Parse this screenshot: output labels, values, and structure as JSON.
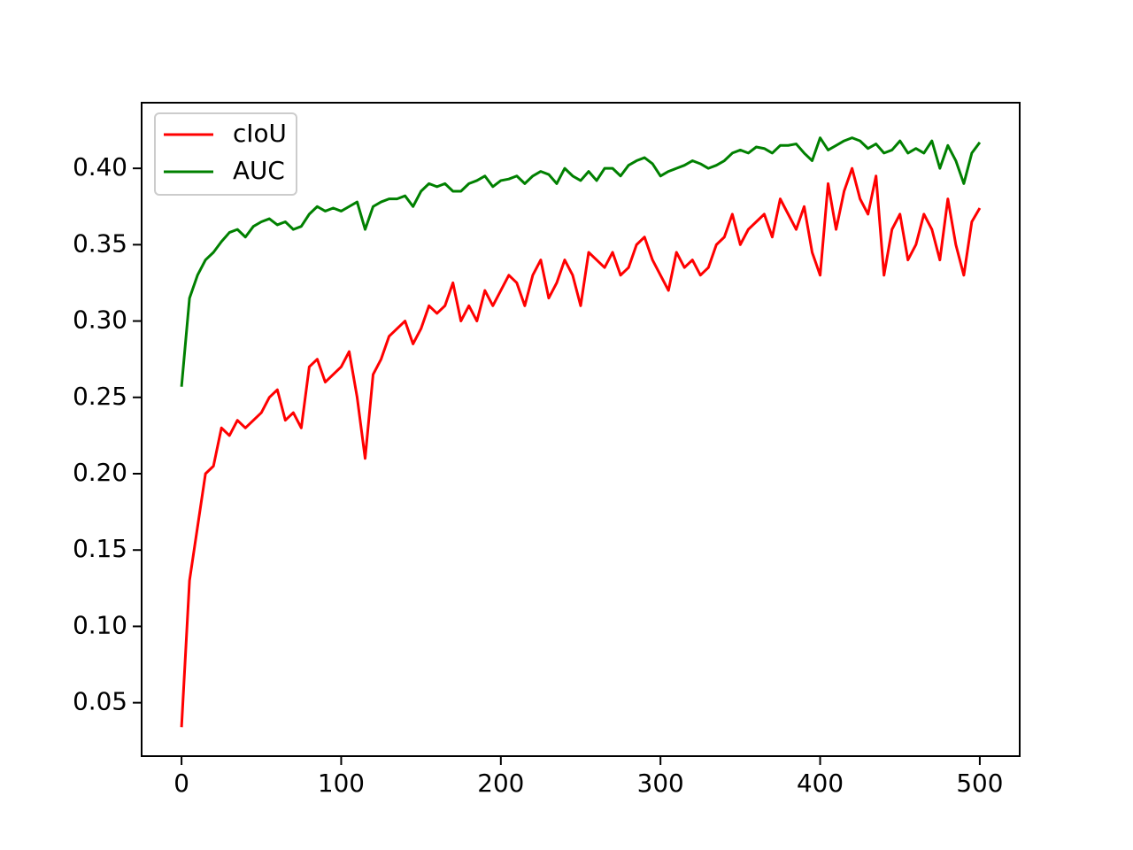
{
  "chart_data": {
    "type": "line",
    "x": [
      0,
      5,
      10,
      15,
      20,
      25,
      30,
      35,
      40,
      45,
      50,
      55,
      60,
      65,
      70,
      75,
      80,
      85,
      90,
      95,
      100,
      105,
      110,
      115,
      120,
      125,
      130,
      135,
      140,
      145,
      150,
      155,
      160,
      165,
      170,
      175,
      180,
      185,
      190,
      195,
      200,
      205,
      210,
      215,
      220,
      225,
      230,
      235,
      240,
      245,
      250,
      255,
      260,
      265,
      270,
      275,
      280,
      285,
      290,
      295,
      300,
      305,
      310,
      315,
      320,
      325,
      330,
      335,
      340,
      345,
      350,
      355,
      360,
      365,
      370,
      375,
      380,
      385,
      390,
      395,
      400,
      405,
      410,
      415,
      420,
      425,
      430,
      435,
      440,
      445,
      450,
      455,
      460,
      465,
      470,
      475,
      480,
      485,
      490,
      495,
      500
    ],
    "series": [
      {
        "name": "cIoU",
        "color": "#ff0000",
        "values": [
          0.034,
          0.13,
          0.165,
          0.2,
          0.205,
          0.23,
          0.225,
          0.235,
          0.23,
          0.235,
          0.24,
          0.25,
          0.255,
          0.235,
          0.24,
          0.23,
          0.27,
          0.275,
          0.26,
          0.265,
          0.27,
          0.28,
          0.25,
          0.21,
          0.265,
          0.275,
          0.29,
          0.295,
          0.3,
          0.285,
          0.295,
          0.31,
          0.305,
          0.31,
          0.325,
          0.3,
          0.31,
          0.3,
          0.32,
          0.31,
          0.32,
          0.33,
          0.325,
          0.31,
          0.33,
          0.34,
          0.315,
          0.325,
          0.34,
          0.33,
          0.31,
          0.345,
          0.34,
          0.335,
          0.345,
          0.33,
          0.335,
          0.35,
          0.355,
          0.34,
          0.33,
          0.32,
          0.345,
          0.335,
          0.34,
          0.33,
          0.335,
          0.35,
          0.355,
          0.37,
          0.35,
          0.36,
          0.365,
          0.37,
          0.355,
          0.38,
          0.37,
          0.36,
          0.375,
          0.345,
          0.33,
          0.39,
          0.36,
          0.385,
          0.4,
          0.38,
          0.37,
          0.395,
          0.33,
          0.36,
          0.37,
          0.34,
          0.35,
          0.37,
          0.36,
          0.34,
          0.38,
          0.35,
          0.33,
          0.365,
          0.374
        ]
      },
      {
        "name": "AUC",
        "color": "#008000",
        "values": [
          0.257,
          0.315,
          0.33,
          0.34,
          0.345,
          0.352,
          0.358,
          0.36,
          0.355,
          0.362,
          0.365,
          0.367,
          0.363,
          0.365,
          0.36,
          0.362,
          0.37,
          0.375,
          0.372,
          0.374,
          0.372,
          0.375,
          0.378,
          0.36,
          0.375,
          0.378,
          0.38,
          0.38,
          0.382,
          0.375,
          0.385,
          0.39,
          0.388,
          0.39,
          0.385,
          0.385,
          0.39,
          0.392,
          0.395,
          0.388,
          0.392,
          0.393,
          0.395,
          0.39,
          0.395,
          0.398,
          0.396,
          0.39,
          0.4,
          0.395,
          0.392,
          0.398,
          0.392,
          0.4,
          0.4,
          0.395,
          0.402,
          0.405,
          0.407,
          0.403,
          0.395,
          0.398,
          0.4,
          0.402,
          0.405,
          0.403,
          0.4,
          0.402,
          0.405,
          0.41,
          0.412,
          0.41,
          0.414,
          0.413,
          0.41,
          0.415,
          0.415,
          0.416,
          0.41,
          0.405,
          0.42,
          0.412,
          0.415,
          0.418,
          0.42,
          0.418,
          0.413,
          0.416,
          0.41,
          0.412,
          0.418,
          0.41,
          0.413,
          0.41,
          0.418,
          0.4,
          0.415,
          0.405,
          0.39,
          0.41,
          0.417
        ]
      }
    ],
    "xlim": [
      -25,
      525
    ],
    "xticks": [
      0,
      100,
      200,
      300,
      400,
      500
    ],
    "ylim": [
      0.015,
      0.443
    ],
    "yticks": [
      0.05,
      {
        "value": 0.1,
        "label": "0.10"
      },
      0.15,
      {
        "value": 0.2,
        "label": "0.20"
      },
      0.25,
      {
        "value": 0.3,
        "label": "0.30"
      },
      0.35,
      {
        "value": 0.4,
        "label": "0.40"
      }
    ],
    "legend": "upper left"
  }
}
